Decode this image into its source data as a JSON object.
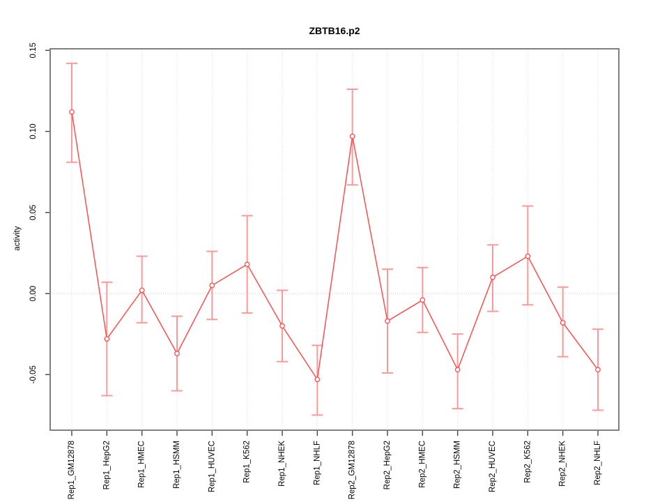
{
  "chart_data": {
    "type": "line",
    "title": "ZBTB16.p2",
    "xlabel": "",
    "ylabel": "activity",
    "categories": [
      "Rep1_GM12878",
      "Rep1_HepG2",
      "Rep1_HMEC",
      "Rep1_HSMM",
      "Rep1_HUVEC",
      "Rep1_K562",
      "Rep1_NHEK",
      "Rep1_NHLF",
      "Rep2_GM12878",
      "Rep2_HepG2",
      "Rep2_HMEC",
      "Rep2_HSMM",
      "Rep2_HUVEC",
      "Rep2_K562",
      "Rep2_NHEK",
      "Rep2_NHLF"
    ],
    "series": [
      {
        "name": "activity",
        "values": [
          0.112,
          -0.028,
          0.002,
          -0.037,
          0.005,
          0.018,
          -0.02,
          -0.053,
          0.097,
          -0.017,
          -0.004,
          -0.047,
          0.01,
          0.023,
          -0.018,
          -0.047
        ],
        "ci_high": [
          0.142,
          0.007,
          0.023,
          -0.014,
          0.026,
          0.048,
          0.002,
          -0.032,
          0.126,
          0.015,
          0.016,
          -0.025,
          0.03,
          0.054,
          0.004,
          -0.022
        ],
        "ci_low": [
          0.081,
          -0.063,
          -0.018,
          -0.06,
          -0.016,
          -0.012,
          -0.042,
          -0.075,
          0.067,
          -0.049,
          -0.024,
          -0.071,
          -0.011,
          -0.007,
          -0.039,
          -0.072
        ]
      }
    ],
    "yticks": [
      0.15,
      0.1,
      0.05,
      0,
      -0.05
    ],
    "ylim": [
      -0.084,
      0.151
    ],
    "grid": "dotted vertical line at each category; dotted horizontal line at y=0",
    "legend": "none",
    "marker": "open-circle",
    "colors": {
      "line": "#ff4d4d",
      "point_stroke": "#ff4d4d",
      "point_fill": "#ffffff",
      "error_bar": "#ff9898",
      "grid": "#dcdcdc",
      "zero_line": "#c9c9c9",
      "box": "#808080",
      "tick": "#404040",
      "text": "#000000"
    }
  }
}
